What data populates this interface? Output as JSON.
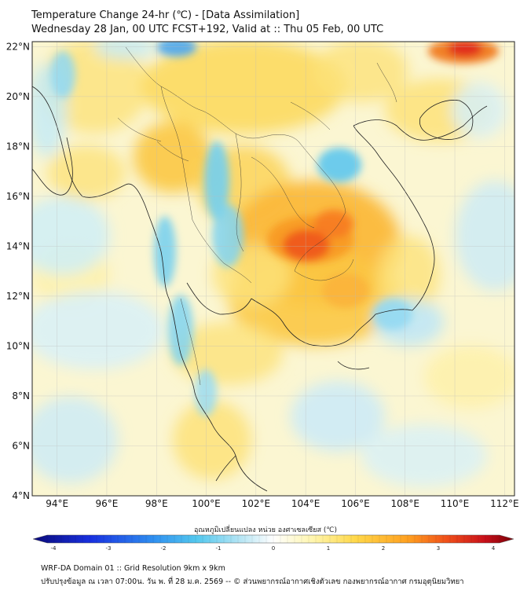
{
  "header": {
    "title": "Temperature Change 24-hr (℃) - [Data Assimilation]",
    "subtitle": "Wednesday 28 Jan, 00 UTC FCST+192, Valid at :: Thu 05 Feb, 00 UTC"
  },
  "map": {
    "lat_labels": [
      "22°N",
      "20°N",
      "18°N",
      "16°N",
      "14°N",
      "12°N",
      "10°N",
      "8°N",
      "6°N",
      "4°N"
    ],
    "lon_labels": [
      "94°E",
      "96°E",
      "98°E",
      "100°E",
      "102°E",
      "104°E",
      "106°E",
      "108°E",
      "110°E",
      "112°E"
    ],
    "lat_range": [
      4,
      22.2
    ],
    "lon_range": [
      93,
      112.4
    ],
    "grid": true
  },
  "colorbar": {
    "title": "อุณหภูมิเปลี่ยนแปลง หน่วย องศาเซลเซียส (℃)",
    "min": -4,
    "max": 4,
    "ticks": [
      "-4",
      "-3",
      "-2",
      "-1",
      "0",
      "1",
      "2",
      "3",
      "4"
    ],
    "colors": [
      "#0a0a7a",
      "#1830e0",
      "#2f8ff0",
      "#53c8ee",
      "#bfe8f5",
      "#ffffff",
      "#fff6b0",
      "#ffd84a",
      "#ffa020",
      "#f0501a",
      "#c8101a",
      "#7a0008"
    ]
  },
  "footer": {
    "line1": "WRF-DA Domain 01 :: Grid Resolution 9km x 9km",
    "line2": "ปรับปรุงข้อมูล ณ เวลา 07:00น. วัน พ. ที่ 28 ม.ค. 2569 -- © ส่วนพยากรณ์อากาศเชิงตัวเลข กองพยากรณ์อากาศ กรมอุตุนิยมวิทยา"
  }
}
